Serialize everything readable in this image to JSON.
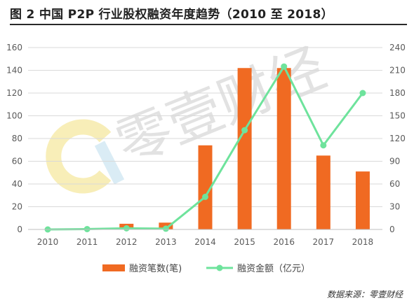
{
  "title": "图 2  中国 P2P 行业股权融资年度趋势（2010 至 2018）",
  "source": "数据来源：零壹财经",
  "watermark": "零壹财经",
  "colors": {
    "bar": "#F06A22",
    "line": "#6EE39C",
    "grid": "#d9d9d9",
    "axis": "#bfbfbf"
  },
  "chart_data": {
    "type": "bar",
    "categories": [
      "2010",
      "2011",
      "2012",
      "2013",
      "2014",
      "2015",
      "2016",
      "2017",
      "2018"
    ],
    "series": [
      {
        "name": "融资笔数(笔)",
        "type": "bar",
        "axis": "left",
        "values": [
          0,
          1,
          5,
          6,
          74,
          142,
          142,
          65,
          51
        ]
      },
      {
        "name": "融资金额（亿元）",
        "type": "line",
        "axis": "right",
        "values": [
          0,
          0.5,
          1.5,
          1,
          43,
          131,
          215,
          111,
          180
        ]
      }
    ],
    "y_left": {
      "min": 0,
      "max": 160,
      "ticks": [
        "0",
        "20",
        "40",
        "60",
        "80",
        "100",
        "120",
        "140",
        "160"
      ]
    },
    "y_right": {
      "min": 0,
      "max": 240,
      "ticks": [
        "0",
        "30",
        "60",
        "90",
        "120",
        "150",
        "180",
        "210",
        "240"
      ]
    },
    "grid": true,
    "legend": "bottom"
  }
}
